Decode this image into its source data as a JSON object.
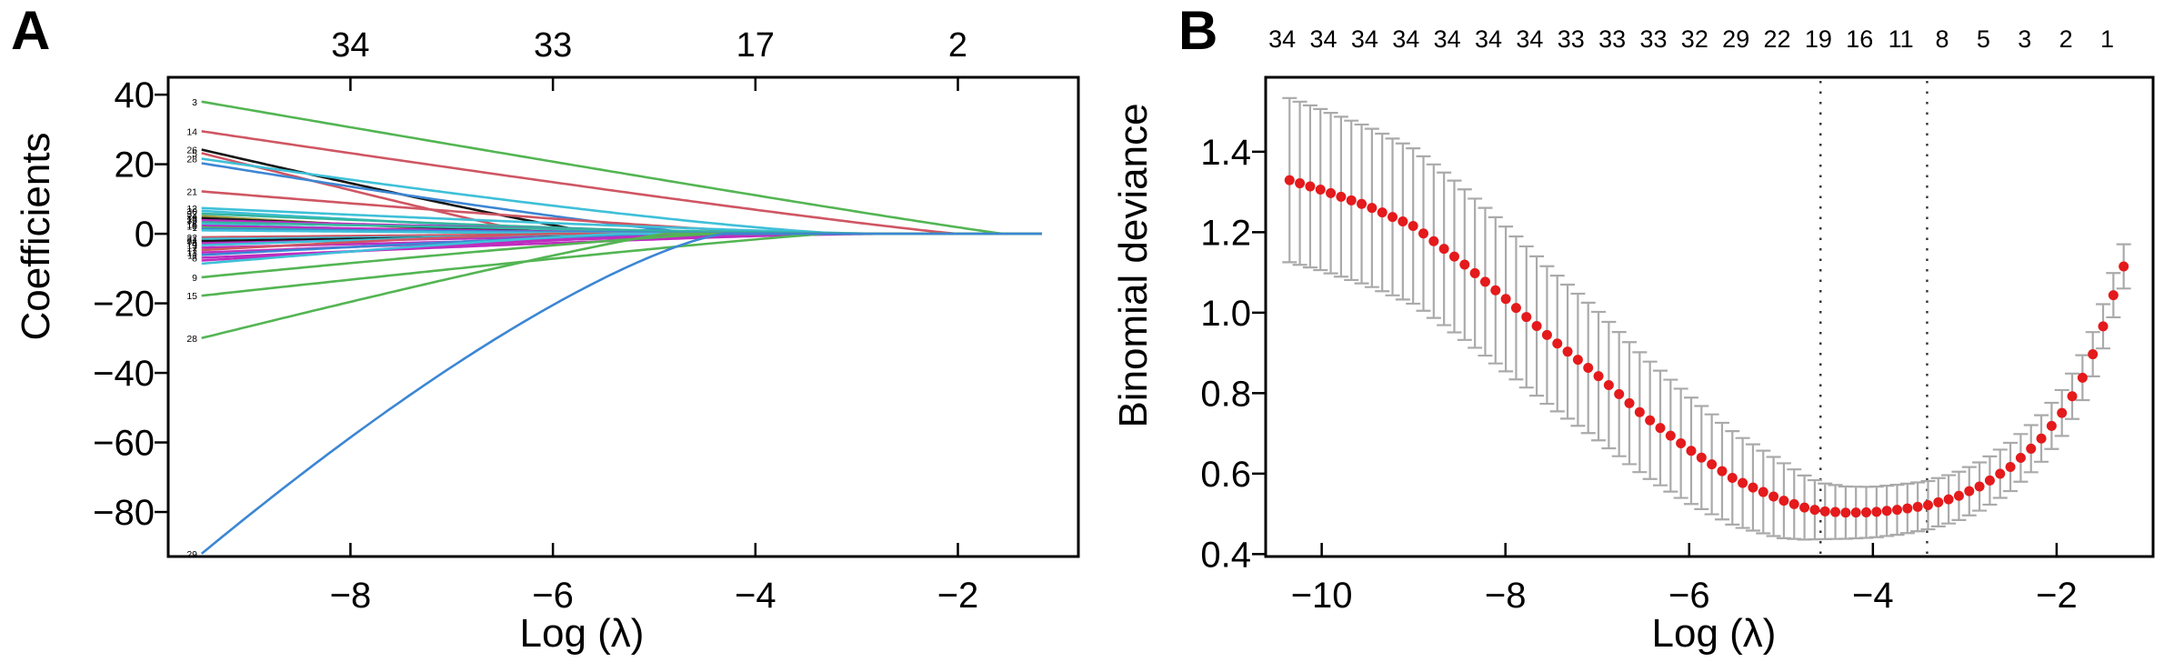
{
  "figure": {
    "background": "#ffffff"
  },
  "panels": {
    "a": {
      "letter": "A"
    },
    "b": {
      "letter": "B"
    }
  },
  "chart_data": [
    {
      "panel": "A",
      "type": "line",
      "title": "",
      "xlabel": "Log (λ)",
      "ylabel": "Coefficients",
      "xlim": [
        -9.8,
        -0.81
      ],
      "ylim": [
        -92.8,
        45
      ],
      "x_ticks": [
        -8,
        -6,
        -4,
        -2
      ],
      "y_ticks": [
        40,
        20,
        0,
        -20,
        -40,
        -60,
        -80
      ],
      "grid": false,
      "top_axis": {
        "positions": [
          -8,
          -6,
          -4,
          -2
        ],
        "labels": [
          "34",
          "33",
          "17",
          "2"
        ]
      },
      "curve_x_start": -9.47,
      "curve_x_end": -1.15,
      "palette": {
        "green": "#53b553",
        "red": "#cf5663",
        "black": "#161616",
        "cyan": "#3ec0d8",
        "blue": "#3c86d4",
        "magenta": "#bf2dbf",
        "teal": "#35b6a0",
        "olive": "#9a9a40"
      },
      "series": [
        {
          "label": "3",
          "color": "green",
          "start": 38,
          "zero_at": -1.55,
          "shape": 1.05
        },
        {
          "label": "14",
          "color": "red",
          "start": 29.5,
          "zero_at": -2.0,
          "shape": 1.1
        },
        {
          "label": "26",
          "color": "black",
          "start": 24.2,
          "zero_at": -5.5,
          "shape": 1.1
        },
        {
          "label": "5",
          "color": "red",
          "start": 23.2,
          "zero_at": -6.15,
          "shape": 1.05
        },
        {
          "label": "28",
          "color": "cyan",
          "start": 21.6,
          "zero_at": -3.1,
          "shape": 1.25
        },
        {
          "label": "",
          "color": "blue",
          "start": 20.3,
          "zero_at": -4.5,
          "shape": 1.15
        },
        {
          "label": "21",
          "color": "red",
          "start": 12.2,
          "zero_at": -3.6,
          "shape": 1.15
        },
        {
          "label": "12",
          "color": "cyan",
          "start": 7.4,
          "zero_at": -2.8,
          "shape": 1.2
        },
        {
          "label": "30",
          "color": "cyan",
          "start": 6.6,
          "zero_at": -4.8,
          "shape": 1.2
        },
        {
          "label": "32",
          "color": "teal",
          "start": 5.8,
          "zero_at": -3.9,
          "shape": 1.2
        },
        {
          "label": "24",
          "color": "olive",
          "start": 5.1,
          "zero_at": -5.9,
          "shape": 1.2
        },
        {
          "label": "18",
          "color": "black",
          "start": 4.5,
          "zero_at": -5.2,
          "shape": 1.2
        },
        {
          "label": "33",
          "color": "magenta",
          "start": 3.9,
          "zero_at": -3.2,
          "shape": 1.2
        },
        {
          "label": "2",
          "color": "teal",
          "start": 3.3,
          "zero_at": -2.6,
          "shape": 1.2
        },
        {
          "label": "16",
          "color": "cyan",
          "start": 2.8,
          "zero_at": -5.8,
          "shape": 1.2
        },
        {
          "label": "10",
          "color": "magenta",
          "start": 2.3,
          "zero_at": -4.2,
          "shape": 1.2
        },
        {
          "label": "1",
          "color": "green",
          "start": 1.8,
          "zero_at": -6.0,
          "shape": 1.2
        },
        {
          "label": "",
          "color": "blue",
          "start": 1.4,
          "zero_at": -3.0,
          "shape": 1.2
        },
        {
          "label": "",
          "color": "cyan",
          "start": 1.0,
          "zero_at": -4.6,
          "shape": 1.2
        },
        {
          "label": "22",
          "color": "red",
          "start": -1.0,
          "zero_at": -5.0,
          "shape": 1.2
        },
        {
          "label": "31",
          "color": "cyan",
          "start": -1.5,
          "zero_at": -2.9,
          "shape": 1.2
        },
        {
          "label": "34",
          "color": "black",
          "start": -2.1,
          "zero_at": -3.8,
          "shape": 1.2
        },
        {
          "label": "4",
          "color": "magenta",
          "start": -2.7,
          "zero_at": -3.4,
          "shape": 1.2
        },
        {
          "label": "19",
          "color": "cyan",
          "start": -3.3,
          "zero_at": -5.6,
          "shape": 1.2
        },
        {
          "label": "17",
          "color": "magenta",
          "start": -4.0,
          "zero_at": -2.7,
          "shape": 1.2
        },
        {
          "label": "7",
          "color": "red",
          "start": -4.7,
          "zero_at": -6.0,
          "shape": 1.2
        },
        {
          "label": "13",
          "color": "magenta",
          "start": -5.4,
          "zero_at": -3.7,
          "shape": 1.2
        },
        {
          "label": "11",
          "color": "blue",
          "start": -6.1,
          "zero_at": -4.9,
          "shape": 1.2
        },
        {
          "label": "8",
          "color": "magenta",
          "start": -6.9,
          "zero_at": -3.1,
          "shape": 1.2
        },
        {
          "label": "",
          "color": "magenta",
          "start": -7.7,
          "zero_at": -4.4,
          "shape": 1.2
        },
        {
          "label": "",
          "color": "cyan",
          "start": -8.6,
          "zero_at": -5.3,
          "shape": 1.2
        },
        {
          "label": "9",
          "color": "green",
          "start": -12.5,
          "zero_at": -4.4,
          "shape": 1.15
        },
        {
          "label": "15",
          "color": "green",
          "start": -17.8,
          "zero_at": -3.3,
          "shape": 1.1
        },
        {
          "label": "28",
          "color": "green",
          "start": -30,
          "zero_at": -4.9,
          "shape": 1.1
        },
        {
          "label": "29",
          "color": "blue",
          "start": -92,
          "zero_at": -4.3,
          "shape": 1.35
        }
      ]
    },
    {
      "panel": "B",
      "type": "scatter",
      "title": "",
      "xlabel": "Log (λ)",
      "ylabel": "Binomial deviance",
      "xlim": [
        -10.61,
        -0.95
      ],
      "ylim": [
        0.394,
        1.585
      ],
      "x_ticks": [
        -10,
        -8,
        -6,
        -4,
        -2
      ],
      "y_ticks": [
        1.4,
        1.2,
        1.0,
        0.8,
        0.6,
        0.4
      ],
      "grid": false,
      "top_axis": {
        "x_start": -10.43,
        "x_end": -1.45,
        "labels": [
          "34",
          "34",
          "34",
          "34",
          "34",
          "34",
          "34",
          "33",
          "33",
          "33",
          "32",
          "29",
          "22",
          "19",
          "16",
          "11",
          "8",
          "5",
          "3",
          "2",
          "1"
        ]
      },
      "vlines": [
        {
          "x": -4.57,
          "style": "dotted"
        },
        {
          "x": -3.41,
          "style": "dotted"
        }
      ],
      "points": {
        "n": 82,
        "x_start": -10.35,
        "x_end": -1.27,
        "point_color": "#e41a1c",
        "errorbar_color": "#aaaaaa",
        "key_points": [
          [
            -10.43,
            1.335,
            0.205
          ],
          [
            -10.0,
            1.305,
            0.2
          ],
          [
            -9.5,
            1.265,
            0.197
          ],
          [
            -9.0,
            1.215,
            0.193
          ],
          [
            -8.5,
            1.13,
            0.188
          ],
          [
            -8.0,
            1.035,
            0.18
          ],
          [
            -7.5,
            0.935,
            0.17
          ],
          [
            -7.0,
            0.845,
            0.16
          ],
          [
            -6.5,
            0.745,
            0.148
          ],
          [
            -6.0,
            0.66,
            0.133
          ],
          [
            -5.5,
            0.585,
            0.115
          ],
          [
            -5.0,
            0.535,
            0.095
          ],
          [
            -4.75,
            0.516,
            0.08
          ],
          [
            -4.57,
            0.507,
            0.07
          ],
          [
            -4.3,
            0.503,
            0.065
          ],
          [
            -4.0,
            0.504,
            0.063
          ],
          [
            -3.7,
            0.511,
            0.062
          ],
          [
            -3.41,
            0.521,
            0.06
          ],
          [
            -3.1,
            0.541,
            0.06
          ],
          [
            -2.8,
            0.572,
            0.06
          ],
          [
            -2.5,
            0.617,
            0.06
          ],
          [
            -2.2,
            0.678,
            0.058
          ],
          [
            -1.95,
            0.748,
            0.057
          ],
          [
            -1.75,
            0.822,
            0.056
          ],
          [
            -1.6,
            0.9,
            0.055
          ],
          [
            -1.48,
            0.975,
            0.055
          ],
          [
            -1.38,
            1.045,
            0.055
          ],
          [
            -1.27,
            1.115,
            0.055
          ]
        ]
      }
    }
  ]
}
